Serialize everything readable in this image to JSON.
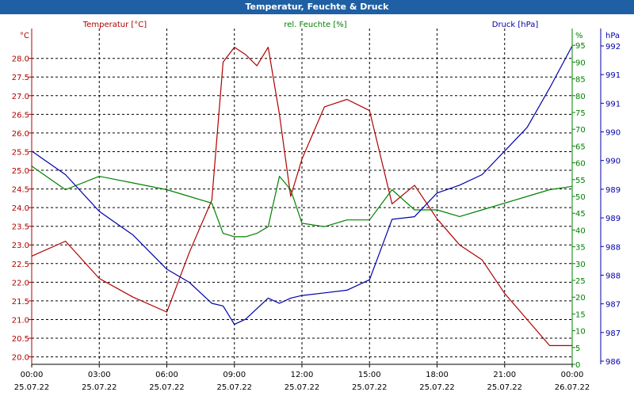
{
  "window": {
    "title": "Temperatur, Feuchte & Druck"
  },
  "colors": {
    "temperature": "#b00000",
    "humidity": "#008000",
    "pressure": "#0000aa",
    "grid": "#000000",
    "text": "#000000",
    "title_bg": "#1f5fa3"
  },
  "chart_data": {
    "type": "line",
    "title": "Temperatur, Feuchte & Druck",
    "x": [
      0,
      1.5,
      3,
      4.5,
      6,
      7,
      8,
      8.5,
      9,
      9.5,
      10,
      10.5,
      11,
      11.5,
      12,
      13,
      14,
      15,
      16,
      17,
      18,
      19,
      20,
      21,
      22,
      23,
      24
    ],
    "x_unit": "hours since 25.07.22 00:00",
    "xlim": [
      0,
      24
    ],
    "xtick_times": [
      "00:00",
      "03:00",
      "06:00",
      "09:00",
      "12:00",
      "15:00",
      "18:00",
      "21:00",
      "00:00"
    ],
    "xtick_dates": [
      "25.07.22",
      "25.07.22",
      "25.07.22",
      "25.07.22",
      "25.07.22",
      "25.07.22",
      "25.07.22",
      "25.07.22",
      "26.07.22"
    ],
    "series": [
      {
        "name": "Temperatur [°C]",
        "unit": "°C",
        "axis": "left",
        "ylim": [
          19.8,
          28.8
        ],
        "values": [
          22.7,
          23.1,
          22.1,
          21.6,
          21.2,
          22.8,
          24.2,
          27.9,
          28.3,
          28.1,
          27.8,
          28.3,
          26.5,
          24.3,
          25.3,
          26.7,
          26.9,
          26.6,
          24.1,
          24.6,
          23.7,
          23.0,
          22.6,
          21.7,
          21.0,
          20.3,
          20.3
        ]
      },
      {
        "name": "rel. Feuchte [%]",
        "unit": "%",
        "axis": "right-inner",
        "ylim": [
          0,
          100
        ],
        "values": [
          59,
          52,
          56,
          54,
          52,
          50,
          48,
          39,
          38,
          38,
          39,
          41,
          56,
          52,
          42,
          41,
          43,
          43,
          52,
          46,
          46,
          44,
          46,
          48,
          50,
          52,
          53
        ]
      },
      {
        "name": "Druck [hPa]",
        "unit": "hPa",
        "axis": "right-outer",
        "ylim": [
          986.25,
          992.25
        ],
        "values": [
          990.05,
          989.6,
          988.9,
          988.45,
          987.8,
          987.55,
          987.15,
          987.1,
          986.75,
          986.85,
          987.05,
          987.25,
          987.15,
          987.25,
          987.3,
          987.35,
          987.4,
          987.6,
          988.75,
          988.8,
          989.25,
          989.4,
          989.6,
          990.05,
          990.5,
          991.25,
          992.05
        ]
      }
    ],
    "yticks_left": [
      "20.0",
      "20.5",
      "21.0",
      "21.5",
      "22.0",
      "22.5",
      "23.0",
      "23.5",
      "24.0",
      "24.5",
      "25.0",
      "25.5",
      "26.0",
      "26.5",
      "27.0",
      "27.5",
      "28.0"
    ],
    "yticks_humidity": [
      "0",
      "5",
      "10",
      "15",
      "20",
      "25",
      "30",
      "35",
      "40",
      "45",
      "50",
      "55",
      "60",
      "65",
      "70",
      "75",
      "80",
      "85",
      "90",
      "95",
      "%"
    ],
    "yticks_pressure": [
      "hPa",
      "992",
      "991",
      "991",
      "990",
      "990",
      "989",
      "989",
      "988",
      "988",
      "987",
      "987",
      "986"
    ],
    "axis_label_left": "°C",
    "grid": true
  }
}
